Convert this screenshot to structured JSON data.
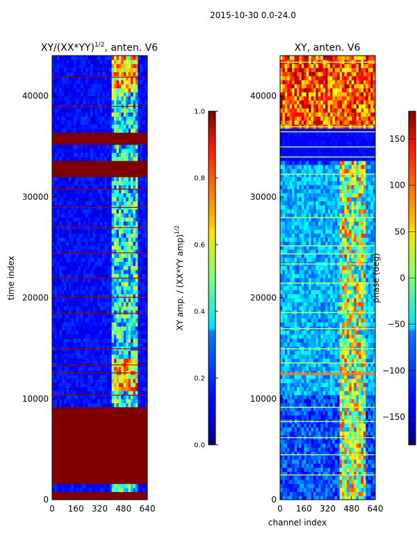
{
  "figure": {
    "suptitle": "2015-10-30 0.0-24.0"
  },
  "chart_data": [
    {
      "type": "heatmap",
      "title": "XY/(XX*YY)^{1/2}, anten. V6",
      "title_main": "XY/(XX*YY)",
      "title_sup": "1/2",
      "title_tail": ", anten. V6",
      "xlabel": "",
      "ylabel": "time index",
      "xlim": [
        0,
        640
      ],
      "ylim": [
        0,
        44000
      ],
      "xticks": [
        0,
        160,
        320,
        480,
        640
      ],
      "yticks": [
        0,
        10000,
        20000,
        30000,
        40000
      ],
      "colorbar": {
        "label": "XY amp. / (XX*YY amp)^{1/2}",
        "label_main": "XY amp. / (XX*YY amp)",
        "label_sup": "1/2",
        "range": [
          0.0,
          1.0
        ],
        "ticks": [
          "0.0",
          "0.2",
          "0.4",
          "0.6",
          "0.8",
          "1.0"
        ]
      },
      "colormap": "jet",
      "flagged_bands_time_index": [
        [
          0,
          900
        ],
        [
          1800,
          4400
        ],
        [
          4600,
          9200
        ],
        [
          32200,
          33700
        ],
        [
          35300,
          36300
        ]
      ],
      "active_channel_band": [
        400,
        560
      ]
    },
    {
      "type": "heatmap",
      "title": "XY, anten. V6",
      "xlabel": "channel index",
      "ylabel": "",
      "xlim": [
        0,
        640
      ],
      "ylim": [
        0,
        44000
      ],
      "xticks": [
        0,
        160,
        320,
        480,
        640
      ],
      "yticks": [
        0,
        10000,
        20000,
        30000,
        40000
      ],
      "colorbar": {
        "label": "phase (deg)",
        "range": [
          -180,
          180
        ],
        "ticks": [
          "150",
          "100",
          "50",
          "0",
          "−50",
          "−100",
          "−150"
        ],
        "tick_values": [
          150,
          100,
          50,
          0,
          -50,
          -100,
          -150
        ]
      },
      "colormap": "jet",
      "high_phase_region_time_index": [
        36500,
        44000
      ],
      "active_channel_band": [
        400,
        560
      ]
    }
  ]
}
